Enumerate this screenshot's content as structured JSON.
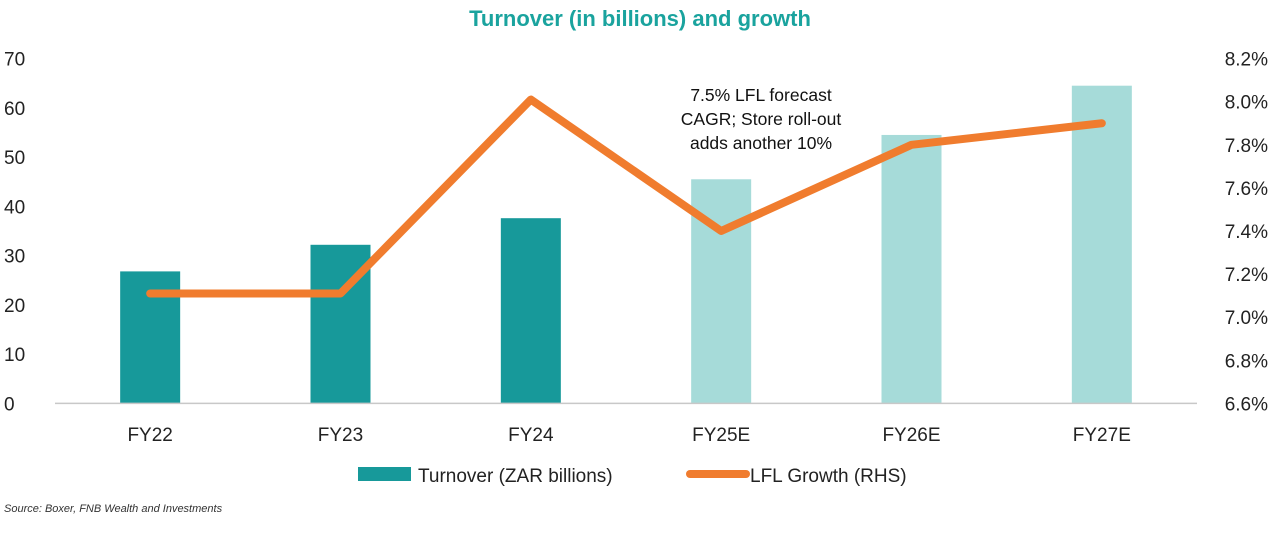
{
  "chart_data": {
    "type": "bar",
    "title": "Turnover (in billions) and growth",
    "categories": [
      "FY22",
      "FY23",
      "FY24",
      "FY25E",
      "FY26E",
      "FY27E"
    ],
    "series": [
      {
        "name": "Turnover (ZAR billions)",
        "type": "bar",
        "axis": "left",
        "values": [
          26.8,
          32.2,
          37.6,
          45.5,
          54.5,
          64.5
        ],
        "colors": [
          "#17999a",
          "#17999a",
          "#17999a",
          "#a6dbd9",
          "#a6dbd9",
          "#a6dbd9"
        ]
      },
      {
        "name": "LFL Growth (RHS)",
        "type": "line",
        "axis": "right",
        "values": [
          7.11,
          7.11,
          8.01,
          7.4,
          7.8,
          7.9
        ],
        "color": "#f07c2e"
      }
    ],
    "y_left": {
      "min": 0,
      "max": 70,
      "step": 10,
      "tick_labels": [
        "0",
        "10",
        "20",
        "30",
        "40",
        "50",
        "60",
        "70"
      ]
    },
    "y_right": {
      "min": 6.6,
      "max": 8.2,
      "step": 0.2,
      "tick_labels": [
        "6.6%",
        "6.8%",
        "7.0%",
        "7.2%",
        "7.4%",
        "7.6%",
        "7.8%",
        "8.0%",
        "8.2%"
      ]
    },
    "annotation": [
      "7.5% LFL forecast",
      "CAGR; Store roll-out",
      "adds another 10%"
    ],
    "legend_position": "bottom",
    "grid": false
  },
  "source": "Source: Boxer, FNB Wealth and Investments"
}
